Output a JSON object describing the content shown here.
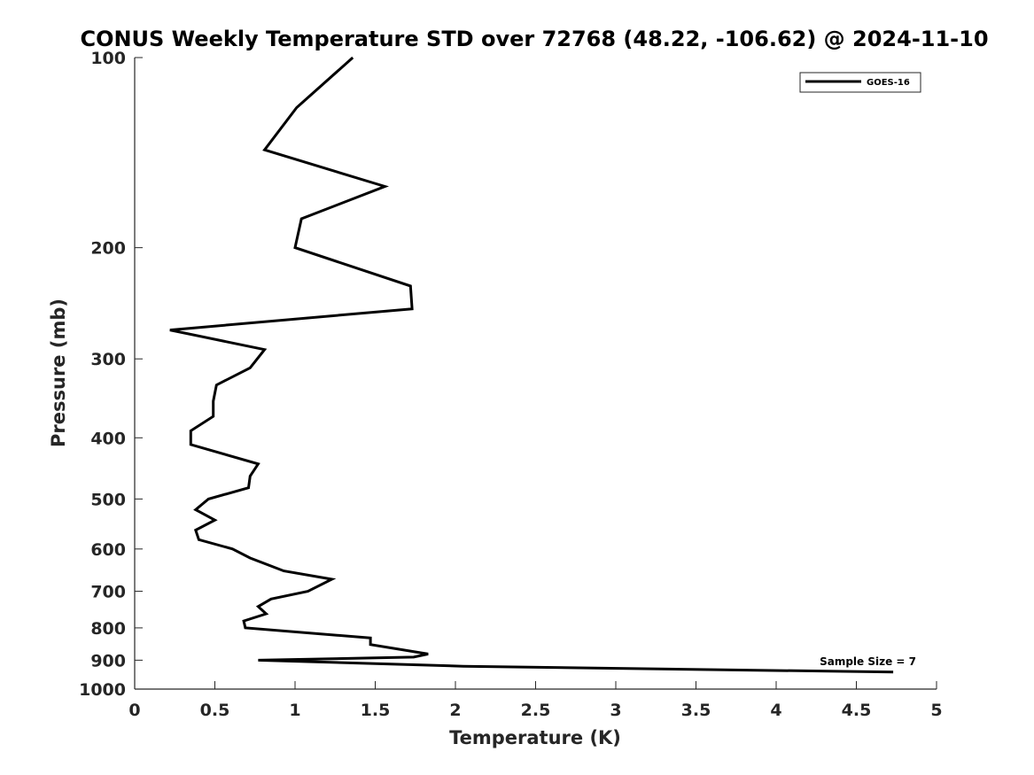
{
  "chart_data": {
    "type": "line",
    "title": "CONUS Weekly Temperature STD over 72768 (48.22, -106.62) @ 2024-11-10",
    "xlabel": "Temperature (K)",
    "ylabel": "Pressure (mb)",
    "xlim": [
      0,
      5
    ],
    "ylim": [
      100,
      1000
    ],
    "y_scale": "log",
    "y_reversed": true,
    "xticks": [
      "0",
      "0.5",
      "1",
      "1.5",
      "2",
      "2.5",
      "3",
      "3.5",
      "4",
      "4.5",
      "5"
    ],
    "yticks": [
      "100",
      "200",
      "300",
      "400",
      "500",
      "600",
      "700",
      "800",
      "900",
      "1000"
    ],
    "grid": false,
    "legend_position": "top-right",
    "series": [
      {
        "name": "GOES-16",
        "color": "#000000",
        "x": [
          1.36,
          1.01,
          0.81,
          1.56,
          1.04,
          1.0,
          1.72,
          1.73,
          0.22,
          0.81,
          0.72,
          0.51,
          0.49,
          0.49,
          0.35,
          0.35,
          0.77,
          0.72,
          0.71,
          0.46,
          0.38,
          0.5,
          0.38,
          0.4,
          0.61,
          0.72,
          0.93,
          1.23,
          1.08,
          0.85,
          0.77,
          0.82,
          0.68,
          0.69,
          1.47,
          1.47,
          1.83,
          1.74,
          0.77,
          2.05,
          4.73
        ],
        "y": [
          100,
          120,
          140,
          160,
          180,
          200,
          230,
          250,
          270,
          290,
          310,
          330,
          350,
          370,
          390,
          410,
          440,
          460,
          480,
          500,
          520,
          540,
          560,
          580,
          600,
          620,
          650,
          670,
          700,
          720,
          740,
          760,
          780,
          800,
          830,
          850,
          880,
          890,
          900,
          920,
          940
        ]
      }
    ],
    "annotations": [
      "Sample Size = 7"
    ]
  }
}
